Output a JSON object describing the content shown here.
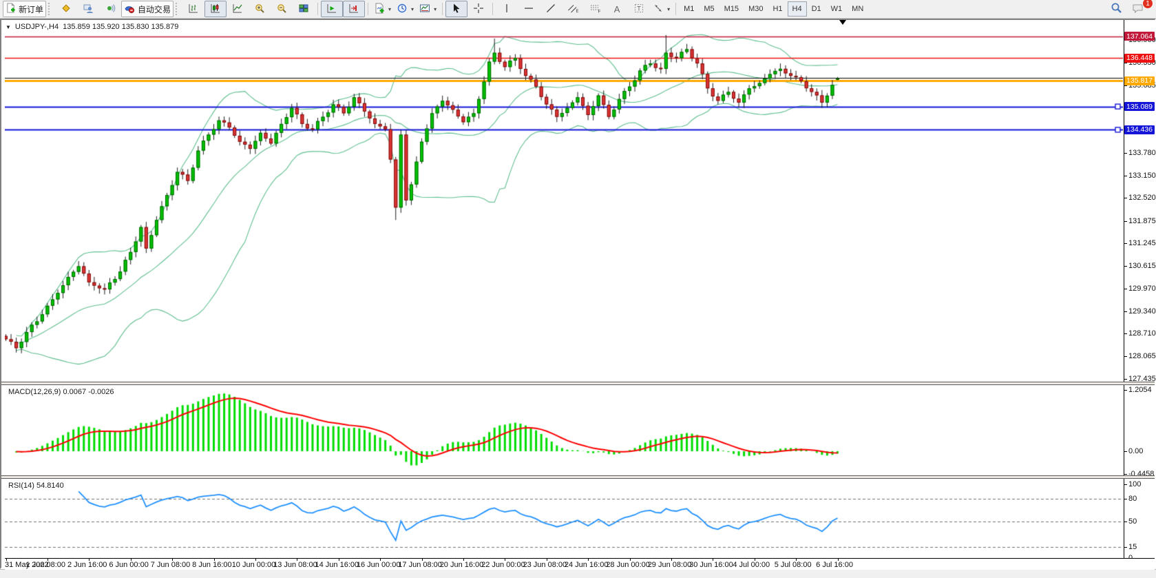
{
  "toolbar": {
    "new_order_label": "新订单",
    "autotrading_label": "自动交易",
    "badge_count": "1",
    "timeframes": [
      {
        "label": "M1",
        "active": false
      },
      {
        "label": "M5",
        "active": false
      },
      {
        "label": "M15",
        "active": false
      },
      {
        "label": "M30",
        "active": false
      },
      {
        "label": "H1",
        "active": false
      },
      {
        "label": "H4",
        "active": true
      },
      {
        "label": "D1",
        "active": false
      },
      {
        "label": "W1",
        "active": false
      },
      {
        "label": "MN",
        "active": false
      }
    ],
    "icons": {
      "new-order-icon": "document-plus",
      "metaeditor-icon": "gold-diamond",
      "profile-icon": "person",
      "alerts-icon": "broadcast",
      "autotrading-icon": "cap-red-dot",
      "bar-chart-icon": "ohlc-bars",
      "candlestick-icon": "candles",
      "line-chart-icon": "polyline",
      "zoom-in-icon": "magnifier-plus",
      "zoom-out-icon": "magnifier-minus",
      "tile-windows-icon": "grid-tiles",
      "auto-scroll-icon": "axis-green-arrow",
      "chart-shift-icon": "axis-red-arrow",
      "new-chart-icon": "chart-plus",
      "profiles-icon": "clock",
      "templates-icon": "framed-chart",
      "cursor-icon": "arrow-pointer",
      "crosshair-icon": "crosshair",
      "vline-icon": "vertical-line",
      "hline-icon": "horizontal-line",
      "trendline-icon": "diagonal-line",
      "channel-icon": "parallel-lines-E",
      "fibonacci-icon": "dotted-rows-F",
      "text-icon": "letter-A",
      "label-icon": "letter-T-box",
      "arrows-icon": "shape-arrows",
      "search-icon": "magnifier",
      "chat-icon": "speech-bubble-badge"
    }
  },
  "chart": {
    "title_symbol": "USDJPY-,H4",
    "title_ohlc": "135.859 135.920 135.830 135.879",
    "macd_label": "MACD(12,26,9) 0.0067 -0.0026",
    "rsi_label": "RSI(14) 54.8140",
    "price_labels": [
      {
        "value": "137.064",
        "price": 137.064,
        "color": "#c21839",
        "thick": false,
        "handles": false
      },
      {
        "value": "136.448",
        "price": 136.448,
        "color": "#ee1111",
        "thick": false,
        "handles": false
      },
      {
        "value": "135.817",
        "price": 135.817,
        "color": "#ffa800",
        "thick": true,
        "handles": false
      },
      {
        "value": "135.089",
        "price": 135.089,
        "color": "#1515d8",
        "thick": false,
        "handles": true
      },
      {
        "value": "134.436",
        "price": 134.436,
        "color": "#1515d8",
        "thick": false,
        "handles": true
      }
    ],
    "black_line_price": 135.895,
    "price_ticks": [
      "136.960",
      "136.330",
      "135.685",
      "133.780",
      "133.150",
      "132.520",
      "131.875",
      "131.245",
      "130.615",
      "129.970",
      "129.340",
      "128.710",
      "128.065",
      "127.435"
    ],
    "macd_ticks": [
      {
        "label": "1.2054",
        "v": 1.2054
      },
      {
        "label": "0.00",
        "v": 0
      },
      {
        "label": "-0.4458",
        "v": -0.4458
      }
    ],
    "rsi_ticks": [
      {
        "label": "100",
        "v": 100,
        "dashed": false
      },
      {
        "label": "80",
        "v": 80,
        "dashed": true
      },
      {
        "label": "50",
        "v": 50,
        "dashed": true
      },
      {
        "label": "15",
        "v": 15,
        "dashed": true
      },
      {
        "label": "0",
        "v": 0,
        "dashed": false
      }
    ],
    "time_labels": [
      "31 May 2022",
      "1 Jun 08:00",
      "2 Jun 16:00",
      "6 Jun 00:00",
      "7 Jun 08:00",
      "8 Jun 16:00",
      "10 Jun 00:00",
      "13 Jun 08:00",
      "14 Jun 16:00",
      "16 Jun 00:00",
      "17 Jun 08:00",
      "20 Jun 16:00",
      "22 Jun 00:00",
      "23 Jun 08:00",
      "24 Jun 16:00",
      "28 Jun 00:00",
      "29 Jun 08:00",
      "30 Jun 16:00",
      "4 Jul 00:00",
      "5 Jul 08:00",
      "6 Jul 16:00"
    ]
  },
  "chart_data": {
    "type": "candlestick",
    "symbol": "USDJPY",
    "period": "H4",
    "bars": 161,
    "bars_per_tick": 8,
    "ylim_main": [
      127.3,
      137.4
    ],
    "close_waypoints": [
      [
        0,
        128.55
      ],
      [
        2,
        128.3
      ],
      [
        4,
        128.75
      ],
      [
        7,
        129.25
      ],
      [
        10,
        129.85
      ],
      [
        12,
        130.3
      ],
      [
        14,
        130.6
      ],
      [
        16,
        130.15
      ],
      [
        19,
        129.95
      ],
      [
        22,
        130.45
      ],
      [
        24,
        131.0
      ],
      [
        26,
        131.7
      ],
      [
        27,
        131.1
      ],
      [
        29,
        131.9
      ],
      [
        31,
        132.6
      ],
      [
        33,
        133.25
      ],
      [
        35,
        133.0
      ],
      [
        37,
        133.85
      ],
      [
        39,
        134.3
      ],
      [
        41,
        134.7
      ],
      [
        43,
        134.5
      ],
      [
        45,
        134.1
      ],
      [
        47,
        133.9
      ],
      [
        49,
        134.35
      ],
      [
        51,
        134.05
      ],
      [
        53,
        134.6
      ],
      [
        55,
        135.05
      ],
      [
        57,
        134.6
      ],
      [
        59,
        134.45
      ],
      [
        61,
        134.8
      ],
      [
        63,
        135.15
      ],
      [
        65,
        134.9
      ],
      [
        67,
        135.35
      ],
      [
        69,
        134.95
      ],
      [
        71,
        134.6
      ],
      [
        73,
        134.45
      ],
      [
        74,
        133.6
      ],
      [
        75,
        132.25
      ],
      [
        76,
        134.3
      ],
      [
        77,
        132.45
      ],
      [
        78,
        132.9
      ],
      [
        80,
        134.1
      ],
      [
        82,
        134.9
      ],
      [
        84,
        135.25
      ],
      [
        86,
        135.0
      ],
      [
        88,
        134.65
      ],
      [
        90,
        134.9
      ],
      [
        91,
        135.3
      ],
      [
        93,
        136.35
      ],
      [
        94,
        136.6
      ],
      [
        96,
        136.2
      ],
      [
        98,
        136.45
      ],
      [
        100,
        135.95
      ],
      [
        102,
        135.65
      ],
      [
        104,
        135.15
      ],
      [
        106,
        134.8
      ],
      [
        108,
        135.05
      ],
      [
        110,
        135.35
      ],
      [
        112,
        134.85
      ],
      [
        114,
        135.4
      ],
      [
        116,
        134.8
      ],
      [
        118,
        135.3
      ],
      [
        120,
        135.65
      ],
      [
        122,
        136.1
      ],
      [
        124,
        136.3
      ],
      [
        126,
        136.15
      ],
      [
        127,
        136.6
      ],
      [
        129,
        136.45
      ],
      [
        131,
        136.7
      ],
      [
        133,
        136.3
      ],
      [
        135,
        135.6
      ],
      [
        137,
        135.25
      ],
      [
        139,
        135.5
      ],
      [
        141,
        135.2
      ],
      [
        143,
        135.6
      ],
      [
        145,
        135.75
      ],
      [
        147,
        136.0
      ],
      [
        149,
        136.15
      ],
      [
        151,
        135.95
      ],
      [
        153,
        135.8
      ],
      [
        155,
        135.5
      ],
      [
        157,
        135.2
      ],
      [
        159,
        135.7
      ],
      [
        160,
        135.879
      ]
    ],
    "wick_overrides": {
      "75": {
        "low": 131.9
      },
      "94": {
        "high": 137.0
      },
      "127": {
        "high": 137.1
      },
      "160": {
        "high": 135.92,
        "low": 135.83
      }
    },
    "last_bar": {
      "open": 135.859,
      "high": 135.92,
      "low": 135.83,
      "close": 135.879
    },
    "indicators": [
      {
        "name": "Bollinger Bands",
        "period": 20,
        "deviation": 2
      },
      {
        "name": "MACD",
        "fast": 12,
        "slow": 26,
        "signal": 9,
        "value": 0.0067,
        "signal_value": -0.0026,
        "ylim": [
          -0.4458,
          1.2054
        ]
      },
      {
        "name": "RSI",
        "period": 14,
        "value": 54.814,
        "levels": [
          80,
          50,
          15
        ],
        "ylim": [
          0,
          100
        ]
      }
    ],
    "colors": {
      "bull": "#00c400",
      "bull_border": "#006600",
      "bear": "#e03434",
      "bear_border": "#7a0c0c",
      "wick": "#1a1a1a",
      "bollinger": "#5fbf8f",
      "macd_hist": "#00dd00",
      "macd_signal": "#ff0000",
      "rsi_line": "#1e90ff",
      "level_dash": "#707070",
      "background": "#ffffff"
    }
  }
}
